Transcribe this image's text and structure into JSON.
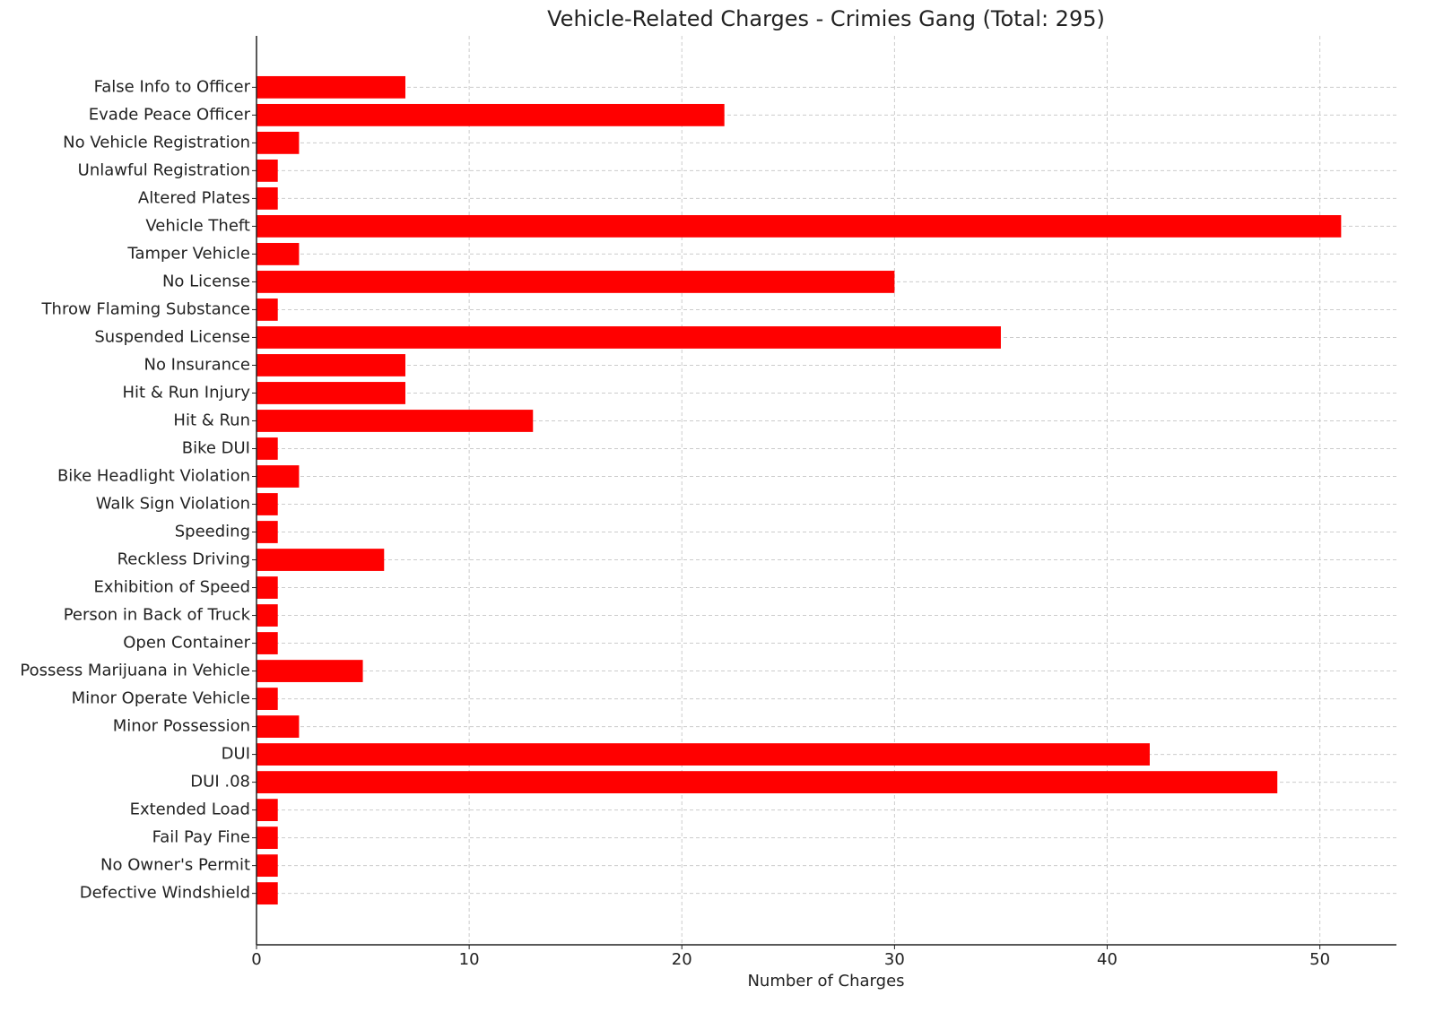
{
  "chart_data": {
    "type": "barh",
    "title": "Vehicle-Related Charges - Crimies Gang (Total: 295)",
    "x_label": "Number of Charges",
    "categories": [
      "False Info to Officer",
      "Evade Peace Officer",
      "No Vehicle Registration",
      "Unlawful Registration",
      "Altered Plates",
      "Vehicle Theft",
      "Tamper Vehicle",
      "No License",
      "Throw Flaming Substance",
      "Suspended License",
      "No Insurance",
      "Hit & Run Injury",
      "Hit & Run",
      "Bike DUI",
      "Bike Headlight Violation",
      "Walk Sign Violation",
      "Speeding",
      "Reckless Driving",
      "Exhibition of Speed",
      "Person in Back of Truck",
      "Open Container",
      "Possess Marijuana in Vehicle",
      "Minor Operate Vehicle",
      "Minor Possession",
      "DUI",
      "DUI .08",
      "Extended Load",
      "Fail Pay Fine",
      "No Owner's Permit",
      "Defective Windshield"
    ],
    "values": [
      7,
      22,
      2,
      1,
      1,
      51,
      2,
      30,
      1,
      35,
      7,
      7,
      13,
      1,
      2,
      1,
      1,
      6,
      1,
      1,
      1,
      5,
      1,
      2,
      42,
      48,
      1,
      1,
      1,
      1
    ],
    "color": "#ff0000",
    "xlim": [
      0,
      53.6
    ],
    "xticks": [
      0,
      10,
      20,
      30,
      40,
      50
    ],
    "grid": true
  }
}
